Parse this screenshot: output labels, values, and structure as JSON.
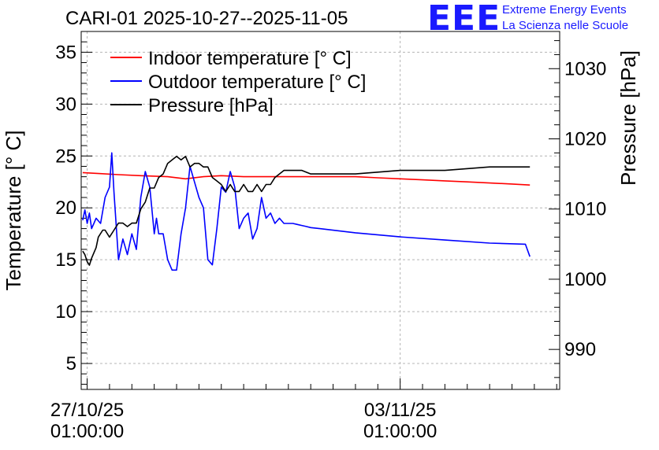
{
  "title": "CARI-01 2025-10-27--2025-11-05",
  "logo": {
    "mark": "EEE",
    "line1": "Extreme Energy Events",
    "line2": "La Scienza nelle Scuole"
  },
  "colors": {
    "indoor": "#ff0000",
    "outdoor": "#0000ff",
    "pressure": "#000000",
    "logo": "#1a1aff",
    "grid": "#b4b4b4"
  },
  "chart_data": {
    "type": "line",
    "title": "CARI-01 2025-10-27--2025-11-05",
    "xlabel": "",
    "ylabel": "Temperature [° C]",
    "y2label": "Pressure [hPa]",
    "xlim": [
      -0.1333,
      10.5667
    ],
    "ylim": [
      2.5,
      37
    ],
    "y2lim": [
      984.3,
      1035.3
    ],
    "grid": true,
    "legend_position": "top-left",
    "x_unit": "days since 27/10/25 01:00:00",
    "x_ticks": [
      {
        "x": 0,
        "date": "27/10/25",
        "time": "01:00:00"
      },
      {
        "x": 7,
        "date": "03/11/25",
        "time": "01:00:00"
      }
    ],
    "y_ticks": [
      5,
      10,
      15,
      20,
      25,
      30,
      35
    ],
    "y2_ticks": [
      990,
      1000,
      1010,
      1020,
      1030
    ],
    "series": [
      {
        "name": "Indoor temperature [° C]",
        "axis": "left",
        "color": "#ff0000",
        "x": [
          -0.1,
          0.3,
          0.7,
          1.2,
          1.8,
          2.2,
          2.6,
          3.0,
          3.5,
          4.0,
          4.5,
          5.0,
          5.5,
          6.0,
          6.5,
          7.0,
          7.5,
          8.0,
          8.5,
          9.0,
          9.5,
          9.9
        ],
        "values": [
          23.4,
          23.3,
          23.2,
          23.1,
          23.0,
          22.8,
          23.0,
          23.1,
          23.0,
          23.0,
          23.0,
          23.0,
          23.0,
          23.0,
          22.9,
          22.8,
          22.7,
          22.6,
          22.5,
          22.4,
          22.3,
          22.2
        ]
      },
      {
        "name": "Outdoor temperature [° C]",
        "axis": "left",
        "color": "#0000ff",
        "x": [
          -0.1,
          -0.05,
          0.0,
          0.05,
          0.1,
          0.15,
          0.2,
          0.3,
          0.4,
          0.5,
          0.55,
          0.6,
          0.7,
          0.8,
          0.9,
          1.0,
          1.1,
          1.2,
          1.3,
          1.4,
          1.5,
          1.55,
          1.6,
          1.7,
          1.8,
          1.9,
          2.0,
          2.1,
          2.2,
          2.3,
          2.4,
          2.5,
          2.6,
          2.7,
          2.8,
          2.9,
          3.0,
          3.1,
          3.2,
          3.3,
          3.4,
          3.5,
          3.6,
          3.7,
          3.8,
          3.9,
          4.0,
          4.1,
          4.2,
          4.3,
          4.4,
          4.5,
          4.6,
          4.7,
          4.8,
          4.9,
          5.0,
          5.2,
          6.0,
          7.0,
          8.0,
          9.0,
          9.8,
          9.9
        ],
        "values": [
          18.8,
          19.8,
          18.5,
          19.5,
          18.0,
          18.5,
          19.0,
          18.5,
          21.0,
          22.0,
          25.3,
          21.5,
          15.0,
          17.0,
          15.5,
          17.5,
          16.0,
          21.0,
          23.5,
          22.0,
          17.5,
          19.0,
          17.5,
          17.5,
          15.0,
          14.0,
          14.0,
          17.5,
          20.0,
          24.0,
          22.5,
          21.0,
          20.0,
          15.0,
          14.5,
          18.0,
          22.0,
          21.5,
          23.5,
          22.0,
          18.0,
          19.0,
          19.5,
          17.0,
          18.0,
          21.0,
          19.0,
          19.5,
          18.5,
          19.0,
          18.5,
          18.5,
          18.5,
          18.4,
          18.3,
          18.2,
          18.1,
          18.0,
          17.6,
          17.2,
          16.9,
          16.6,
          16.5,
          15.3
        ]
      },
      {
        "name": "Pressure [hPa]",
        "axis": "right",
        "color": "#000000",
        "x": [
          -0.1,
          -0.05,
          0.0,
          0.05,
          0.1,
          0.2,
          0.25,
          0.35,
          0.4,
          0.5,
          0.6,
          0.7,
          0.8,
          0.9,
          1.0,
          1.1,
          1.2,
          1.3,
          1.4,
          1.5,
          1.6,
          1.7,
          1.8,
          1.9,
          2.0,
          2.1,
          2.2,
          2.3,
          2.4,
          2.5,
          2.6,
          2.7,
          2.8,
          2.9,
          3.0,
          3.1,
          3.2,
          3.3,
          3.4,
          3.5,
          3.6,
          3.7,
          3.8,
          3.9,
          4.0,
          4.1,
          4.2,
          4.3,
          4.4,
          4.6,
          4.8,
          5.0,
          5.5,
          6.0,
          7.0,
          8.0,
          9.0,
          9.9
        ],
        "values": [
          1004.0,
          1003.5,
          1002.5,
          1002.0,
          1003.0,
          1004.5,
          1006.0,
          1007.0,
          1007.0,
          1006.0,
          1007.0,
          1008.0,
          1008.0,
          1007.5,
          1008.0,
          1008.0,
          1010.0,
          1011.0,
          1013.0,
          1013.0,
          1014.5,
          1015.0,
          1016.5,
          1017.0,
          1017.5,
          1017.0,
          1017.5,
          1016.0,
          1016.5,
          1016.5,
          1016.0,
          1016.0,
          1014.5,
          1014.0,
          1013.5,
          1012.5,
          1013.5,
          1012.5,
          1012.5,
          1013.5,
          1012.5,
          1012.5,
          1013.5,
          1012.5,
          1013.5,
          1013.5,
          1014.5,
          1015.0,
          1015.5,
          1015.5,
          1015.5,
          1015.0,
          1015.0,
          1015.0,
          1015.5,
          1015.5,
          1016.0,
          1016.0
        ]
      }
    ]
  }
}
